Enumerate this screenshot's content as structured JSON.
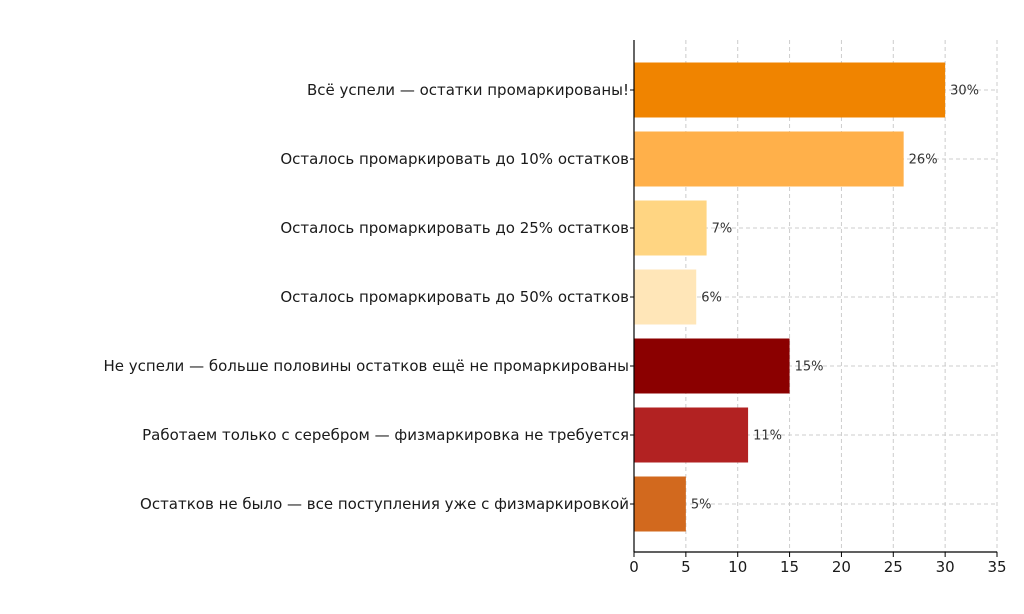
{
  "chart_data": {
    "type": "bar",
    "orientation": "horizontal",
    "categories": [
      "Всё успели — остатки промаркированы!",
      "Осталось промаркировать до 10% остатков",
      "Осталось промаркировать до 25% остатков",
      "Осталось промаркировать до 50% остатков",
      "Не успели — больше половины остатков ещё не промаркированы",
      "Работаем только с серебром — физмаркировка не требуется",
      "Остатков не было — все поступления уже с физмаркировкой"
    ],
    "values": [
      30,
      26,
      7,
      6,
      15,
      11,
      5
    ],
    "data_labels": [
      "30%",
      "26%",
      "7%",
      "6%",
      "15%",
      "11%",
      "5%"
    ],
    "colors": [
      "#f08400",
      "#ffb04a",
      "#ffd582",
      "#ffe6b8",
      "#8b0000",
      "#b22222",
      "#d2691e"
    ],
    "xlim": [
      0,
      35
    ],
    "x_ticks": [
      0,
      5,
      10,
      15,
      20,
      25,
      30,
      35
    ],
    "x_tick_labels": [
      "0",
      "5",
      "10",
      "15",
      "20",
      "25",
      "30",
      "35"
    ],
    "grid": true,
    "title": "",
    "xlabel": "",
    "ylabel": ""
  }
}
